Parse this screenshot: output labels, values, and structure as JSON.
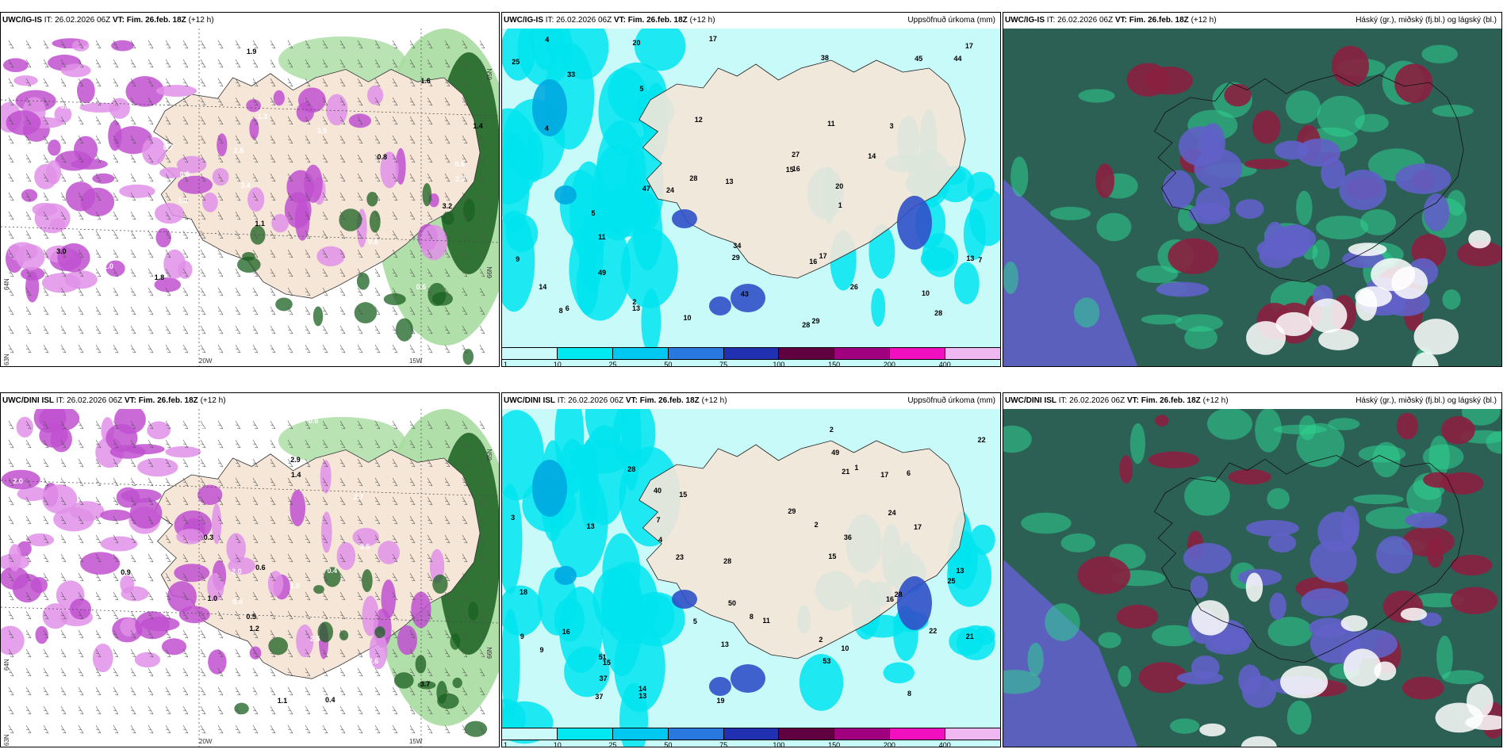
{
  "panels": [
    {
      "model": "UWC/IG-IS",
      "it": "IT: 26.02.2026 06Z",
      "vt_label": "VT:",
      "vt": "Fim. 26.feb. 18Z",
      "lead": "(+12 h)",
      "right_title": "",
      "map_type": "wind-precip",
      "axis_labels": [
        "20W",
        "15W",
        "65N",
        "66N",
        "64N",
        "63N"
      ],
      "labels": [
        "0.8",
        "1.1",
        "1.3",
        "0.7",
        "0.6",
        "1.0",
        "0.5",
        "2.0",
        "3.0",
        "1.9",
        "3.4",
        "2.8",
        "1.6",
        "0.2",
        "0.8",
        "0.7",
        "2.7",
        "2.4",
        "1.8",
        "2.2",
        "1.4",
        "0.6",
        "0.7",
        "0.8",
        "3.5",
        "1.2",
        "0.9",
        "3.2"
      ]
    },
    {
      "model": "UWC/IG-IS",
      "it": "IT: 26.02.2026 06Z",
      "vt_label": "VT:",
      "vt": "Fim. 26.feb. 18Z",
      "lead": "(+12 h)",
      "right_title": "Uppsöfnuð úrkoma (mm)",
      "map_type": "accum",
      "colorbar": [
        "1",
        "10",
        "25",
        "50",
        "75",
        "100",
        "150",
        "200",
        "400"
      ],
      "labels": [
        "10",
        "28",
        "2",
        "26",
        "20",
        "33",
        "47",
        "28",
        "17",
        "12",
        "45",
        "43",
        "28",
        "29",
        "38",
        "15",
        "4",
        "13",
        "24",
        "25",
        "16",
        "17",
        "27",
        "8",
        "3",
        "5",
        "9",
        "11",
        "4",
        "1",
        "13",
        "29",
        "34",
        "44",
        "49",
        "20",
        "13",
        "14",
        "11",
        "10",
        "16",
        "14",
        "7",
        "6",
        "5",
        "17"
      ]
    },
    {
      "model": "UWC/IG-IS",
      "it": "IT: 26.02.2026 06Z",
      "vt_label": "VT:",
      "vt": "Fim. 26.feb. 18Z",
      "lead": "(+12 h)",
      "right_title": "Háský (gr.), miðský (fj.bl.) og lágský (bl.)",
      "map_type": "cloud"
    },
    {
      "model": "UWC/DINI ISL",
      "it": "IT: 26.02.2026 06Z",
      "vt_label": "VT:",
      "vt": "Fim. 26.feb. 18Z",
      "lead": "(+12 h)",
      "right_title": "",
      "map_type": "wind-precip",
      "axis_labels": [
        "20W",
        "15W",
        "65N",
        "66N",
        "64N",
        "63N"
      ],
      "labels": [
        "0.5",
        "0.6",
        "2.1",
        "2.0",
        "0.9",
        "0.3",
        "1.0",
        "0.4",
        "1.0",
        "2.9",
        "4.5",
        "1.2",
        "2.2",
        "3.5",
        "0.5",
        "2.5",
        "3.7",
        "1.7",
        "2.0",
        "2.7",
        "0.6",
        "1.4",
        "1.1",
        "0.8",
        "0.4",
        "0.6",
        "2.6",
        "0.5"
      ]
    },
    {
      "model": "UWC/DINI ISL",
      "it": "IT: 26.02.2026 06Z",
      "vt_label": "VT:",
      "vt": "Fim. 26.feb. 18Z",
      "lead": "(+12 h)",
      "right_title": "Uppsöfnuð úrkoma (mm)",
      "map_type": "accum",
      "colorbar": [
        "1",
        "10",
        "25",
        "50",
        "75",
        "100",
        "150",
        "200",
        "400"
      ],
      "labels": [
        "25",
        "2",
        "13",
        "23",
        "29",
        "22",
        "53",
        "51",
        "36",
        "37",
        "17",
        "21",
        "28",
        "10",
        "22",
        "15",
        "14",
        "16",
        "15",
        "8",
        "2",
        "9",
        "1",
        "3",
        "2",
        "13",
        "19",
        "28",
        "28",
        "40",
        "24",
        "15",
        "13",
        "18",
        "37",
        "49",
        "50",
        "21",
        "17",
        "13",
        "11",
        "16",
        "7",
        "9",
        "6",
        "5",
        "8",
        "4"
      ]
    },
    {
      "model": "UWC/DINI ISL",
      "it": "IT: 26.02.2026 06Z",
      "vt_label": "VT:",
      "vt": "Fim. 26.feb. 18Z",
      "lead": "(+12 h)",
      "right_title": "Háský (gr.), miðský (fj.bl.) og lágský (bl.)",
      "map_type": "cloud"
    }
  ],
  "colorbar_colors": [
    "#ccfafa",
    "#00e8f0",
    "#00c8f0",
    "#2878e0",
    "#2030b0",
    "#600040",
    "#a00080",
    "#f010c0",
    "#f0b8f0"
  ],
  "palette": {
    "land": "#f5e6d8",
    "light_cyan": "#c8fafa",
    "cyan": "#00e4f0",
    "blue": "#3050c8",
    "magenta": "#c050d0",
    "pink": "#e090e8",
    "green_dark": "#1a6020",
    "green_light": "#a8dca0",
    "cloud_dark": "#2c6055",
    "cloud_red": "#8a2040",
    "cloud_blue": "#6060c8",
    "cloud_green": "#30d090"
  }
}
